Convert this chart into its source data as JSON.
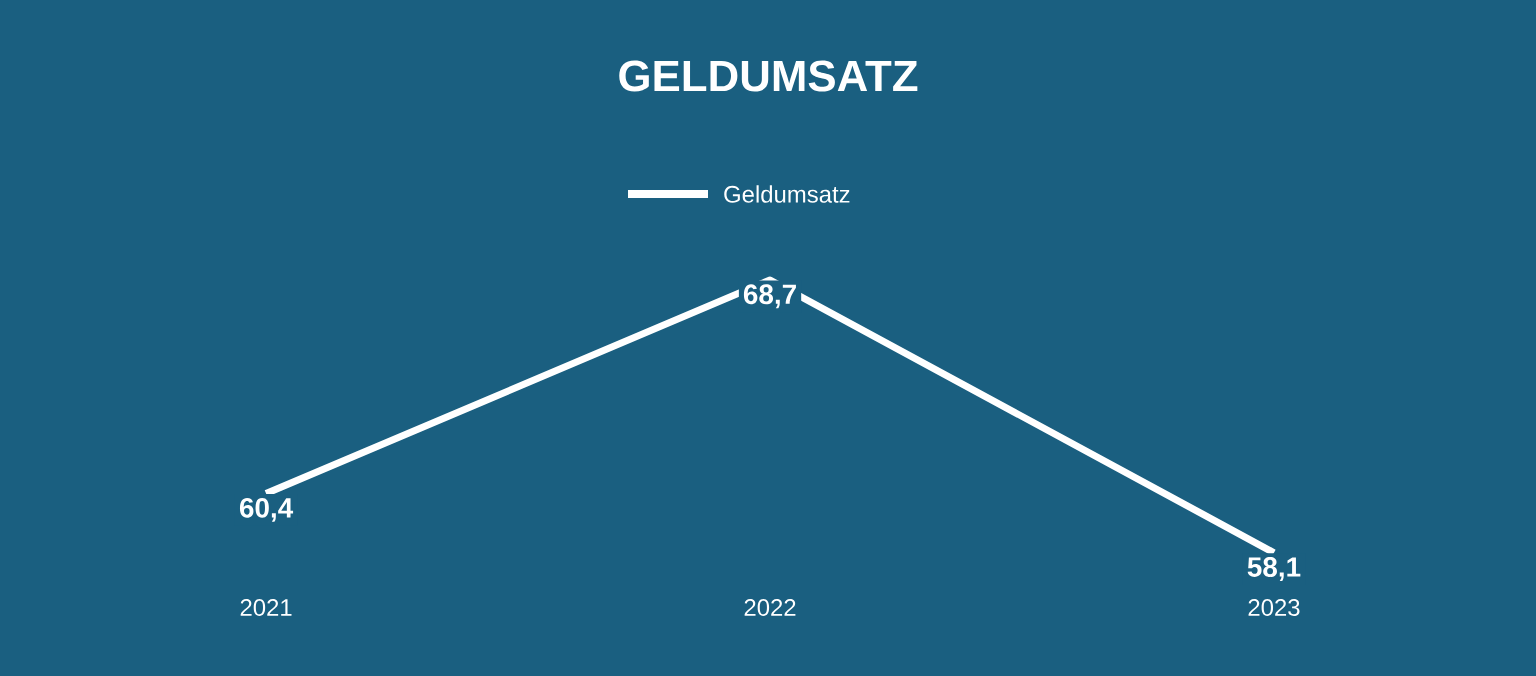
{
  "chart_data": {
    "type": "line",
    "title": "GELDUMSATZ",
    "categories": [
      "2021",
      "2022",
      "2023"
    ],
    "series": [
      {
        "name": "Geldumsatz",
        "color": "#ffffff",
        "values": [
          60.4,
          68.7,
          58.1
        ],
        "value_labels": [
          "60,4",
          "68,7",
          "58,1"
        ]
      }
    ],
    "legend": "top",
    "marker": "none"
  }
}
